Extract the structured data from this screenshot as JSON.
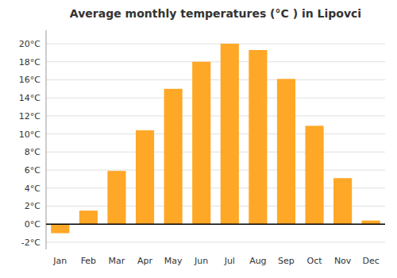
{
  "chart_data": {
    "type": "bar",
    "title": "Average monthly temperatures (°C ) in Lipovci",
    "categories": [
      "Jan",
      "Feb",
      "Mar",
      "Apr",
      "May",
      "Jun",
      "Jul",
      "Aug",
      "Sep",
      "Oct",
      "Nov",
      "Dec"
    ],
    "values": [
      -1.0,
      1.5,
      5.9,
      10.4,
      15.0,
      18.0,
      20.0,
      19.3,
      16.1,
      10.9,
      5.1,
      0.4
    ],
    "color": "#FFA726",
    "ylim": [
      -2.8,
      21.5
    ],
    "yticks": [
      {
        "value": -2,
        "label": "-2°C"
      },
      {
        "value": 0,
        "label": "0°C"
      },
      {
        "value": 2,
        "label": "2°C"
      },
      {
        "value": 4,
        "label": "4°C"
      },
      {
        "value": 6,
        "label": "6°C"
      },
      {
        "value": 8,
        "label": "8°C"
      },
      {
        "value": 10,
        "label": "10°C"
      },
      {
        "value": 12,
        "label": "12°C"
      },
      {
        "value": 14,
        "label": "14°C"
      },
      {
        "value": 16,
        "label": "16°C"
      },
      {
        "value": 18,
        "label": "18°C"
      },
      {
        "value": 20,
        "label": "20°C"
      }
    ],
    "grid": true
  }
}
